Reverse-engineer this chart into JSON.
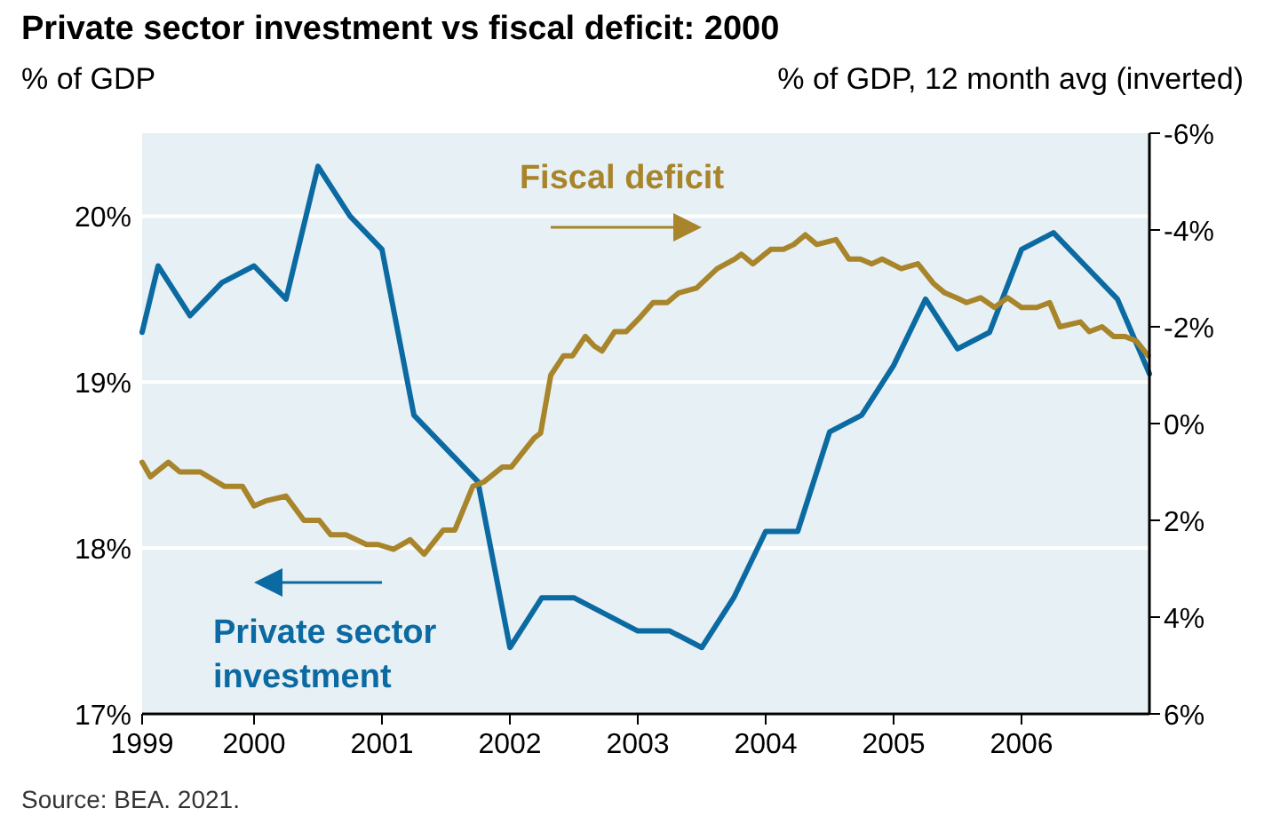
{
  "chart_data": {
    "type": "line",
    "title": "Private sector investment vs fiscal deficit: 2000",
    "ylabel": "% of GDP",
    "y2label": "% of GDP, 12 month avg (inverted)",
    "annotations": [
      "Source: BEA. 2021."
    ],
    "xlim": [
      1999.125,
      2007
    ],
    "xticks": [
      {
        "value": 1999.125,
        "label": "1999"
      },
      2000,
      2001,
      2002,
      2003,
      2004,
      2005,
      2006
    ],
    "ylim": [
      17,
      20.5
    ],
    "yticks": [
      {
        "value": 17,
        "label": "17%"
      },
      {
        "value": 18,
        "label": "18%"
      },
      {
        "value": 19,
        "label": "19%"
      },
      {
        "value": 20,
        "label": "20%"
      }
    ],
    "y2lim": [
      6,
      -6
    ],
    "y2ticks": [
      {
        "value": -6,
        "label": "-6%"
      },
      {
        "value": -4,
        "label": "-4%"
      },
      {
        "value": -2,
        "label": "-2%"
      },
      {
        "value": 0,
        "label": "0%"
      },
      {
        "value": 2,
        "label": "2%"
      },
      {
        "value": 4,
        "label": "4%"
      },
      {
        "value": 6,
        "label": "6%"
      }
    ],
    "grid": "y",
    "series": [
      {
        "name": "Private sector investment",
        "color": "#0b6aa2",
        "x": [
          1999.125,
          1999.25,
          1999.5,
          1999.75,
          2000,
          2000.25,
          2000.5,
          2000.75,
          2001,
          2001.25,
          2001.75,
          2002,
          2002.25,
          2002.5,
          2003,
          2003.25,
          2003.5,
          2003.75,
          2004,
          2004.25,
          2004.5,
          2004.75,
          2005,
          2005.25,
          2005.5,
          2005.75,
          2006,
          2006.25,
          2006.5,
          2006.75,
          2007
        ],
        "values": [
          19.3,
          19.7,
          19.4,
          19.6,
          19.7,
          19.5,
          20.3,
          20.0,
          19.8,
          18.8,
          18.4,
          17.4,
          17.7,
          17.7,
          17.5,
          17.5,
          17.4,
          17.7,
          18.1,
          18.1,
          18.7,
          18.8,
          19.1,
          19.5,
          19.2,
          19.3,
          19.8,
          19.9,
          19.7,
          19.5,
          19.05
        ]
      },
      {
        "name": "Fiscal deficit",
        "color": "#a8842a",
        "axis": "y2",
        "x": [
          1999.125,
          1999.19,
          1999.33,
          1999.42,
          1999.58,
          1999.77,
          1999.91,
          2000.0,
          2000.09,
          2000.25,
          2000.39,
          2000.51,
          2000.6,
          2000.72,
          2000.88,
          2000.97,
          2001.09,
          2001.22,
          2001.33,
          2001.48,
          2001.57,
          2001.71,
          2001.8,
          2001.94,
          2002.01,
          2002.19,
          2002.24,
          2002.32,
          2002.42,
          2002.49,
          2002.59,
          2002.66,
          2002.72,
          2002.82,
          2002.91,
          2003.02,
          2003.12,
          2003.23,
          2003.32,
          2003.46,
          2003.62,
          2003.76,
          2003.81,
          2003.9,
          2004.04,
          2004.14,
          2004.22,
          2004.31,
          2004.4,
          2004.55,
          2004.65,
          2004.74,
          2004.83,
          2004.91,
          2005.06,
          2005.19,
          2005.31,
          2005.4,
          2005.49,
          2005.57,
          2005.68,
          2005.79,
          2005.89,
          2006.0,
          2006.12,
          2006.22,
          2006.3,
          2006.46,
          2006.53,
          2006.63,
          2006.72,
          2006.81,
          2006.9,
          2006.99
        ],
        "values": [
          0.8,
          1.1,
          0.8,
          1.0,
          1.0,
          1.3,
          1.3,
          1.7,
          1.6,
          1.5,
          2.0,
          2.0,
          2.3,
          2.3,
          2.5,
          2.5,
          2.6,
          2.4,
          2.7,
          2.2,
          2.2,
          1.3,
          1.2,
          0.9,
          0.9,
          0.3,
          0.2,
          -1.0,
          -1.4,
          -1.4,
          -1.8,
          -1.6,
          -1.5,
          -1.9,
          -1.9,
          -2.2,
          -2.5,
          -2.5,
          -2.7,
          -2.8,
          -3.2,
          -3.4,
          -3.5,
          -3.3,
          -3.6,
          -3.6,
          -3.7,
          -3.9,
          -3.7,
          -3.8,
          -3.4,
          -3.4,
          -3.3,
          -3.4,
          -3.2,
          -3.3,
          -2.9,
          -2.7,
          -2.6,
          -2.5,
          -2.6,
          -2.4,
          -2.6,
          -2.4,
          -2.4,
          -2.5,
          -2.0,
          -2.1,
          -1.9,
          -2.0,
          -1.8,
          -1.8,
          -1.7,
          -1.4
        ]
      }
    ]
  }
}
